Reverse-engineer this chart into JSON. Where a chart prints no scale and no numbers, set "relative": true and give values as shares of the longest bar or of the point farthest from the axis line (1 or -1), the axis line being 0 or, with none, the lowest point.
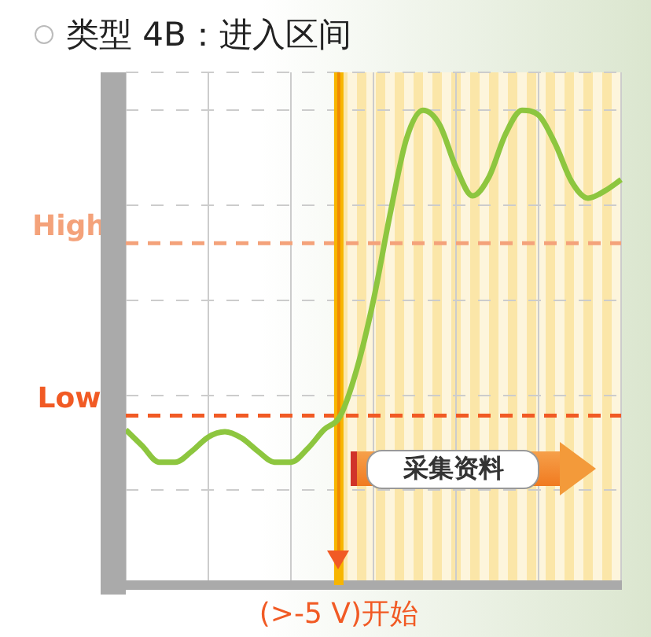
{
  "chart_data": {
    "type": "line",
    "title": "类型 4B：进入区间",
    "relative": true,
    "legend": false,
    "grid": true,
    "marker": "none",
    "line_style": "solid",
    "categories": [
      null,
      null,
      null,
      null,
      null,
      null,
      null,
      null,
      null,
      null,
      null,
      null,
      null,
      null,
      null,
      null,
      null,
      null,
      null,
      null,
      null,
      null,
      null,
      null,
      null,
      null,
      null,
      null,
      null,
      null,
      null
    ],
    "series": [
      {
        "color": "#8dc63f",
        "values": [
          0.327,
          0.293,
          0.259,
          0.259,
          0.282,
          0.312,
          0.323,
          0.31,
          0.282,
          0.259,
          0.259,
          0.287,
          0.327,
          0.357,
          0.456,
          0.6,
          0.78,
          0.94,
          1,
          0.97,
          0.88,
          0.82,
          0.86,
          0.95,
          1,
          0.99,
          0.93,
          0.85,
          0.815,
          0.83,
          0.854
        ]
      }
    ],
    "ref_lines": [
      {
        "axis": "y",
        "value": 0.72,
        "label": "High",
        "color": "#f4a27a",
        "line_style": "dashed"
      },
      {
        "axis": "y",
        "value": 0.357,
        "label": "Low",
        "color": "#f15a24",
        "line_style": "dashed"
      }
    ],
    "annotations": [
      "采集资料",
      "(>-5 V)开始"
    ]
  }
}
